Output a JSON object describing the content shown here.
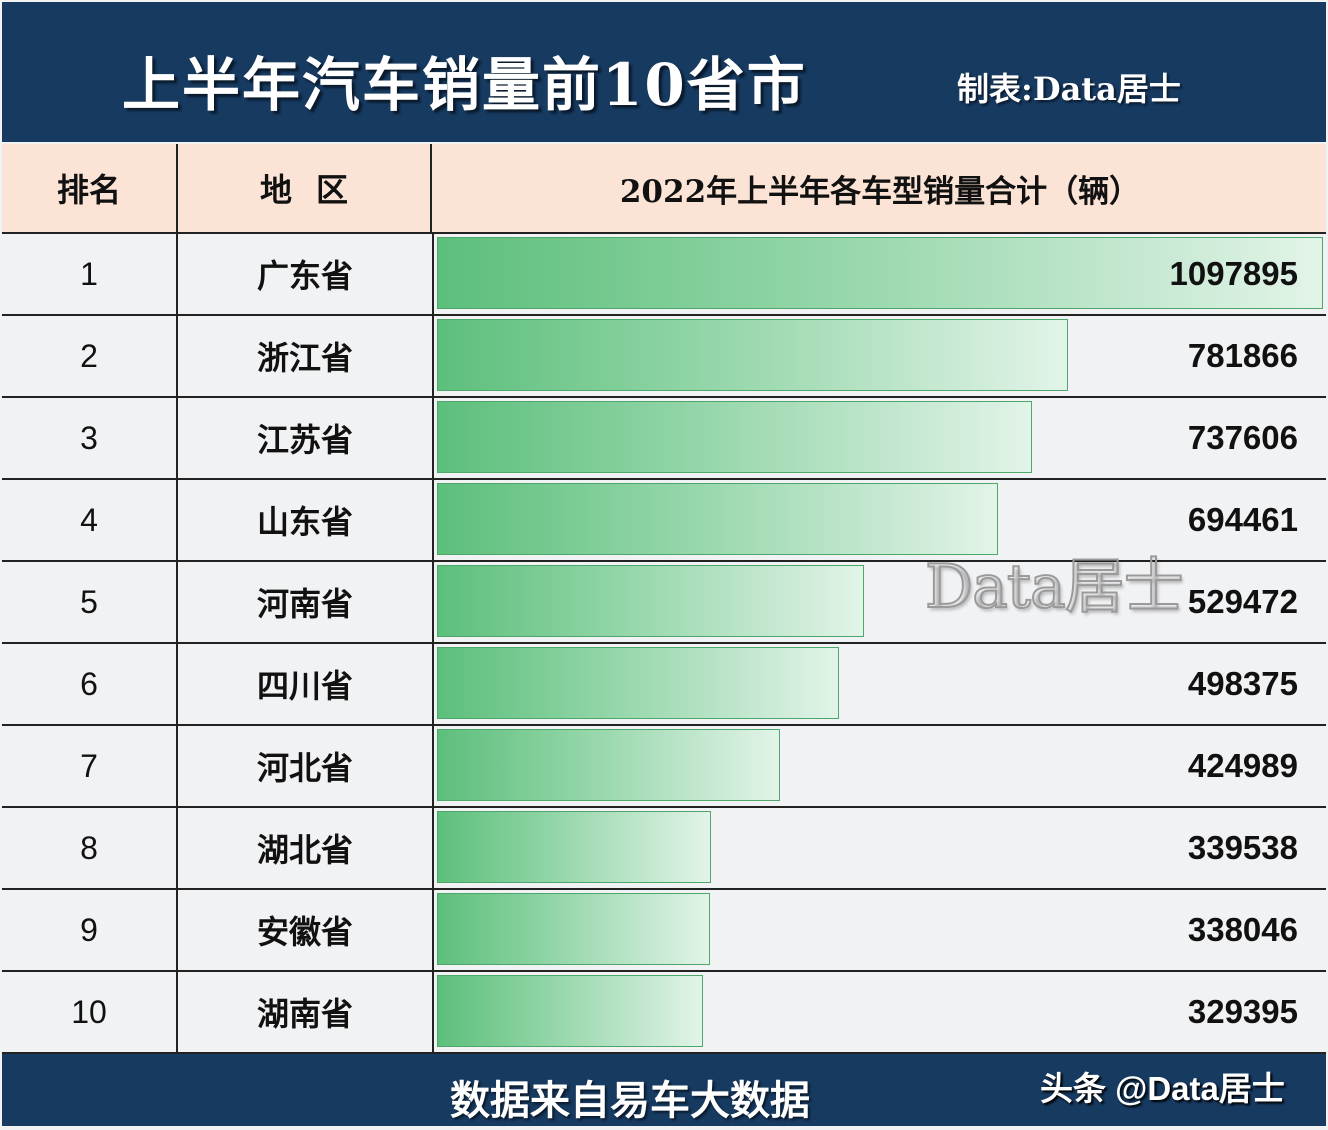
{
  "header": {
    "title": "上半年汽车销量前10省市",
    "credit": "制表:Data居士"
  },
  "table": {
    "columns": [
      "排名",
      "地区",
      "2022年上半年各车型销量合计（辆）"
    ],
    "rows": [
      {
        "rank": "1",
        "region": "广东省",
        "value": "1097895",
        "pct": 100
      },
      {
        "rank": "2",
        "region": "浙江省",
        "value": "781866",
        "pct": 71.2
      },
      {
        "rank": "3",
        "region": "江苏省",
        "value": "737606",
        "pct": 67.2
      },
      {
        "rank": "4",
        "region": "山东省",
        "value": "694461",
        "pct": 63.3
      },
      {
        "rank": "5",
        "region": "河南省",
        "value": "529472",
        "pct": 48.2
      },
      {
        "rank": "6",
        "region": "四川省",
        "value": "498375",
        "pct": 45.4
      },
      {
        "rank": "7",
        "region": "河北省",
        "value": "424989",
        "pct": 38.7
      },
      {
        "rank": "8",
        "region": "湖北省",
        "value": "339538",
        "pct": 30.9
      },
      {
        "rank": "9",
        "region": "安徽省",
        "value": "338046",
        "pct": 30.8
      },
      {
        "rank": "10",
        "region": "湖南省",
        "value": "329395",
        "pct": 30.0
      }
    ]
  },
  "watermark": "Data居士",
  "footer": {
    "source": "数据来自易车大数据",
    "handle": "头条 @Data居士"
  },
  "colors": {
    "banner": "#173a61",
    "header_bg": "#fbe3d5",
    "bar_start": "#5dbf7c",
    "bar_end": "#e2f4e8",
    "row_bg": "#f1f2f4"
  },
  "chart_data": {
    "type": "bar",
    "orientation": "horizontal",
    "title": "上半年汽车销量前10省市",
    "subtitle": "2022年上半年各车型销量合计（辆）",
    "categories": [
      "广东省",
      "浙江省",
      "江苏省",
      "山东省",
      "河南省",
      "四川省",
      "河北省",
      "湖北省",
      "安徽省",
      "湖南省"
    ],
    "values": [
      1097895,
      781866,
      737606,
      694461,
      529472,
      498375,
      424989,
      339538,
      338046,
      329395
    ],
    "xlabel": "销量（辆）",
    "ylabel": "地区",
    "source": "数据来自易车大数据"
  }
}
